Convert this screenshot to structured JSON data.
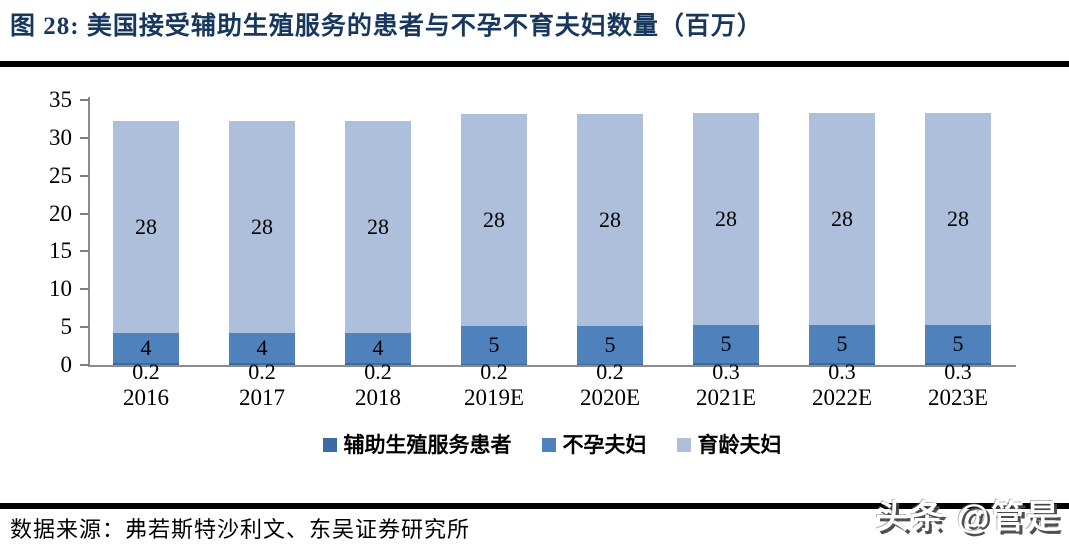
{
  "figure": {
    "title": "图 28:  美国接受辅助生殖服务的患者与不孕不育夫妇数量（百万）",
    "source": "数据来源：弗若斯特沙利文、东吴证券研究所",
    "watermark": "头条 @管是"
  },
  "colors": {
    "title": "#17375E",
    "axis": "#8C8C8C",
    "label_text": "#000000"
  },
  "chart_data": {
    "type": "bar",
    "stacked": true,
    "grid": false,
    "title": "美国接受辅助生殖服务的患者与不孕不育夫妇数量（百万）",
    "xlabel": "",
    "ylabel": "",
    "ylim": [
      0,
      35
    ],
    "yticks": [
      0,
      5,
      10,
      15,
      20,
      25,
      30,
      35
    ],
    "legend_position": "bottom",
    "categories": [
      "2016",
      "2017",
      "2018",
      "2019E",
      "2020E",
      "2021E",
      "2022E",
      "2023E"
    ],
    "series": [
      {
        "name": "辅助生殖服务患者",
        "color": "#3A6BA5",
        "values": [
          0.2,
          0.2,
          0.2,
          0.2,
          0.2,
          0.3,
          0.3,
          0.3
        ],
        "labels": [
          "0.2",
          "0.2",
          "0.2",
          "0.2",
          "0.2",
          "0.3",
          "0.3",
          "0.3"
        ]
      },
      {
        "name": "不孕夫妇",
        "color": "#4F81BD",
        "values": [
          4,
          4,
          4,
          5,
          5,
          5,
          5,
          5
        ],
        "labels": [
          "4",
          "4",
          "4",
          "5",
          "5",
          "5",
          "5",
          "5"
        ]
      },
      {
        "name": "育龄夫妇",
        "color": "#AEBFDB",
        "values": [
          28,
          28,
          28,
          28,
          28,
          28,
          28,
          28
        ],
        "labels": [
          "28",
          "28",
          "28",
          "28",
          "28",
          "28",
          "28",
          "28"
        ]
      }
    ]
  }
}
